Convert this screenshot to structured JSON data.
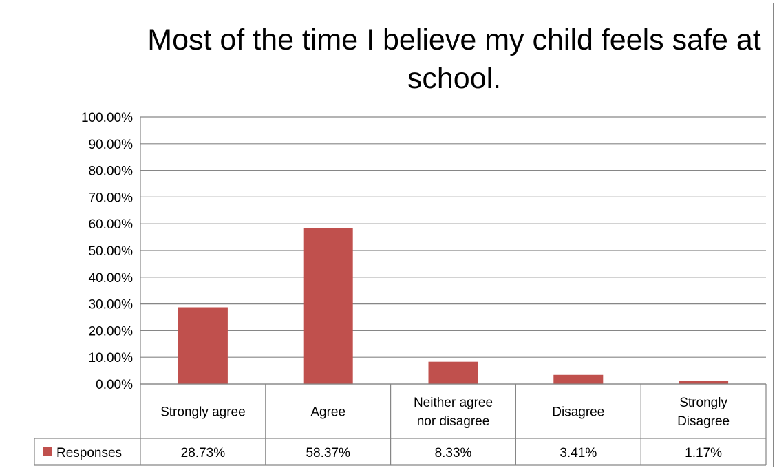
{
  "chart_data": {
    "type": "bar",
    "title": "Most of the time I believe my child feels safe at school.",
    "categories": [
      "Strongly agree",
      "Agree",
      "Neither agree nor disagree",
      "Disagree",
      "Strongly Disagree"
    ],
    "series": [
      {
        "name": "Responses",
        "values": [
          28.73,
          58.37,
          8.33,
          3.41,
          1.17
        ],
        "value_labels": [
          "28.73%",
          "58.37%",
          "8.33%",
          "3.41%",
          "1.17%"
        ],
        "color": "#c0504d"
      }
    ],
    "ylim": [
      0,
      100
    ],
    "yticks": [
      "0.00%",
      "10.00%",
      "20.00%",
      "30.00%",
      "40.00%",
      "50.00%",
      "60.00%",
      "70.00%",
      "80.00%",
      "90.00%",
      "100.00%"
    ],
    "grid": true,
    "data_table": true,
    "legend_placement": "data-table"
  }
}
